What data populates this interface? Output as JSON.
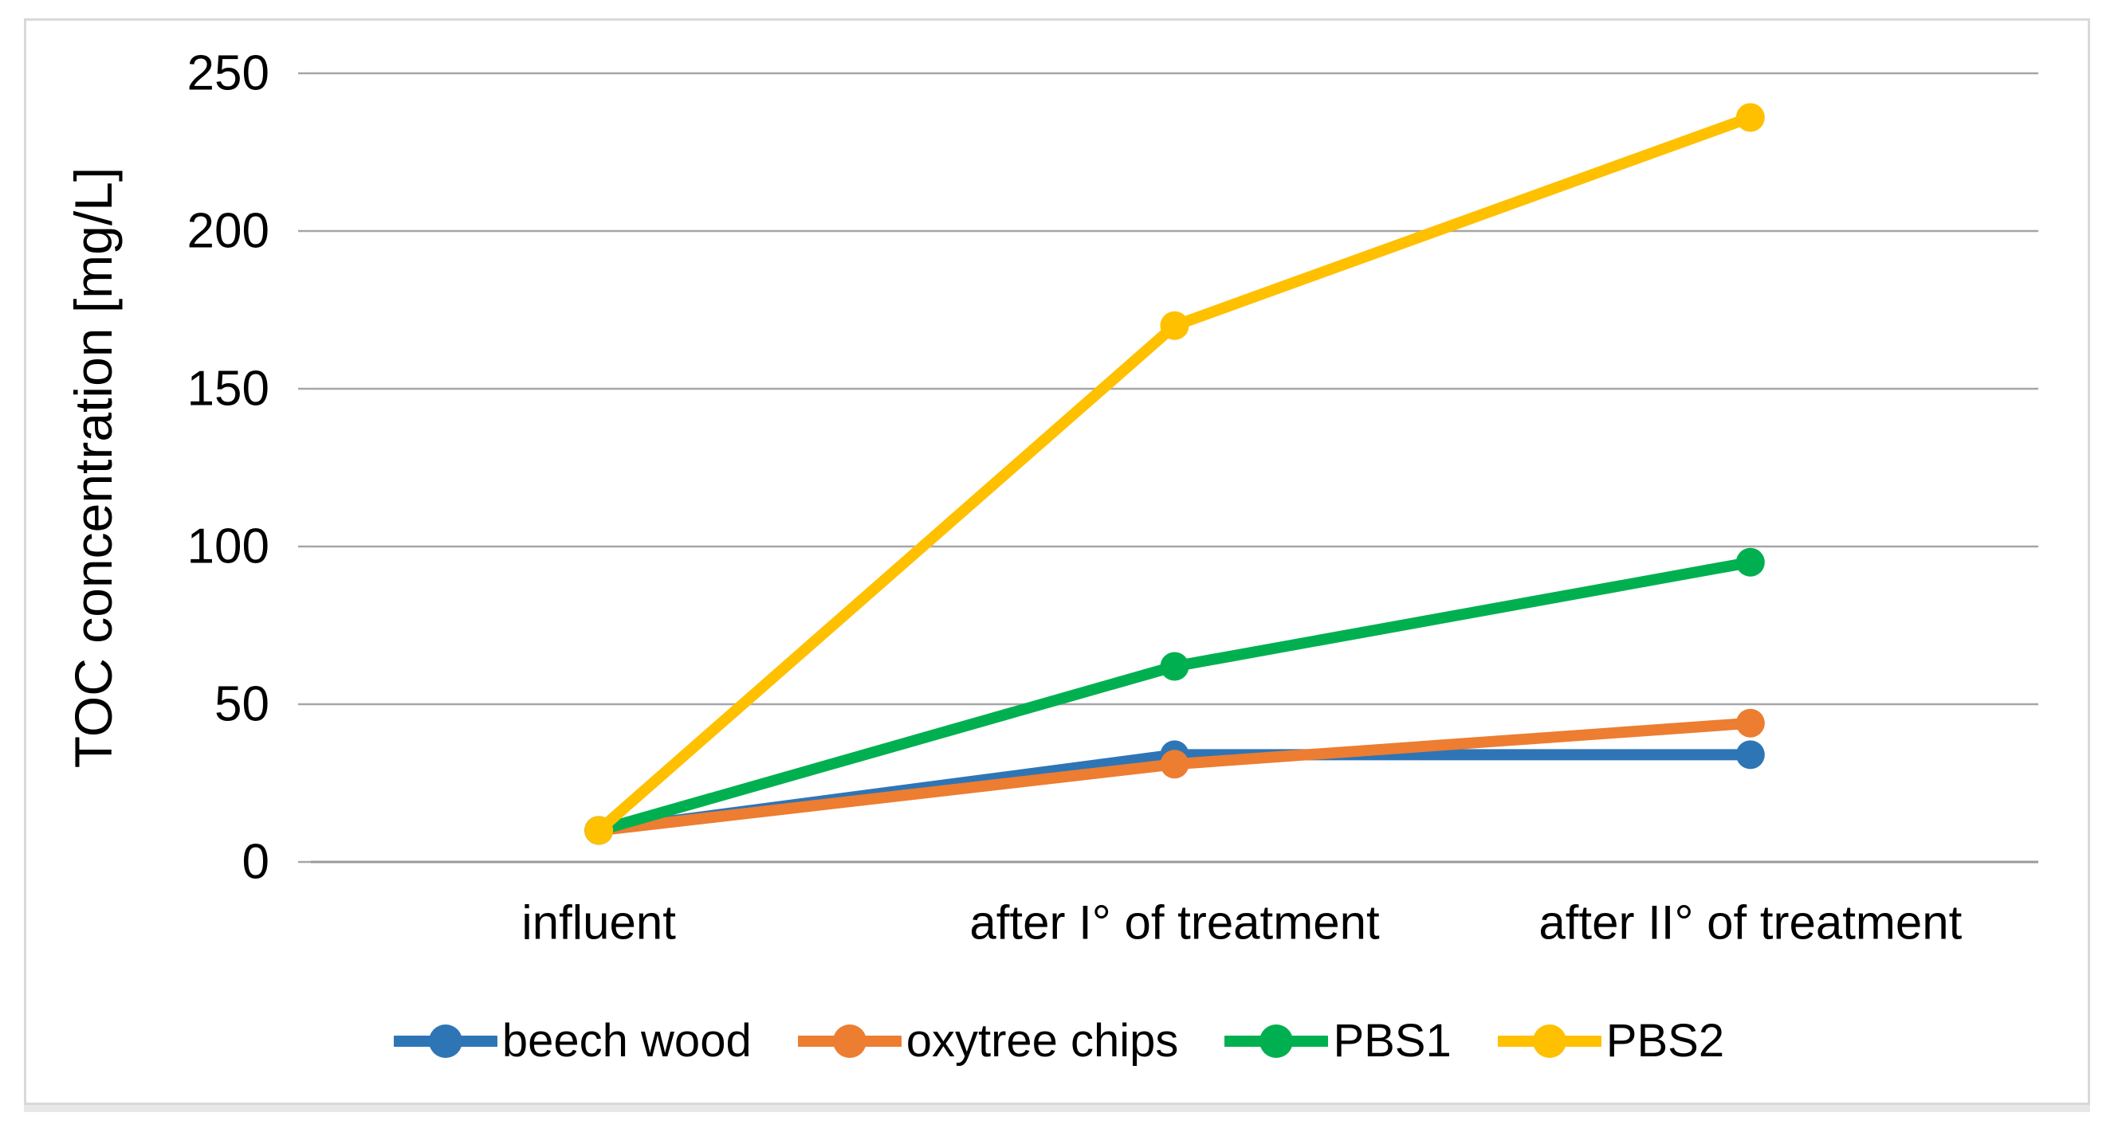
{
  "chart_data": {
    "type": "line",
    "title": "",
    "categories": [
      "influent",
      "after I° of treatment",
      "after II° of treatment"
    ],
    "series": [
      {
        "name": "beech wood",
        "color": "#2E75B6",
        "values": [
          10,
          34,
          34
        ]
      },
      {
        "name": "oxytree chips",
        "color": "#ED7D31",
        "values": [
          10,
          31,
          44
        ]
      },
      {
        "name": "PBS1",
        "color": "#00B050",
        "values": [
          10,
          62,
          95
        ]
      },
      {
        "name": "PBS2",
        "color": "#FFC000",
        "values": [
          10,
          170,
          236
        ]
      }
    ],
    "xlabel": "",
    "ylabel": "TOC concentration [mg/L]",
    "ylim": [
      0,
      250
    ],
    "yticks": [
      0,
      50,
      100,
      150,
      200,
      250
    ],
    "grid": true,
    "legend_position": "bottom",
    "marker": "circle"
  },
  "styles": {
    "grid_color": "#a6a6a6",
    "axis_color": "#9b9b9b",
    "text_color": "#000000",
    "background": "#ffffff",
    "frame_border_color": "#d9d9d9",
    "frame_shadow_color": "#e7e7e7"
  }
}
